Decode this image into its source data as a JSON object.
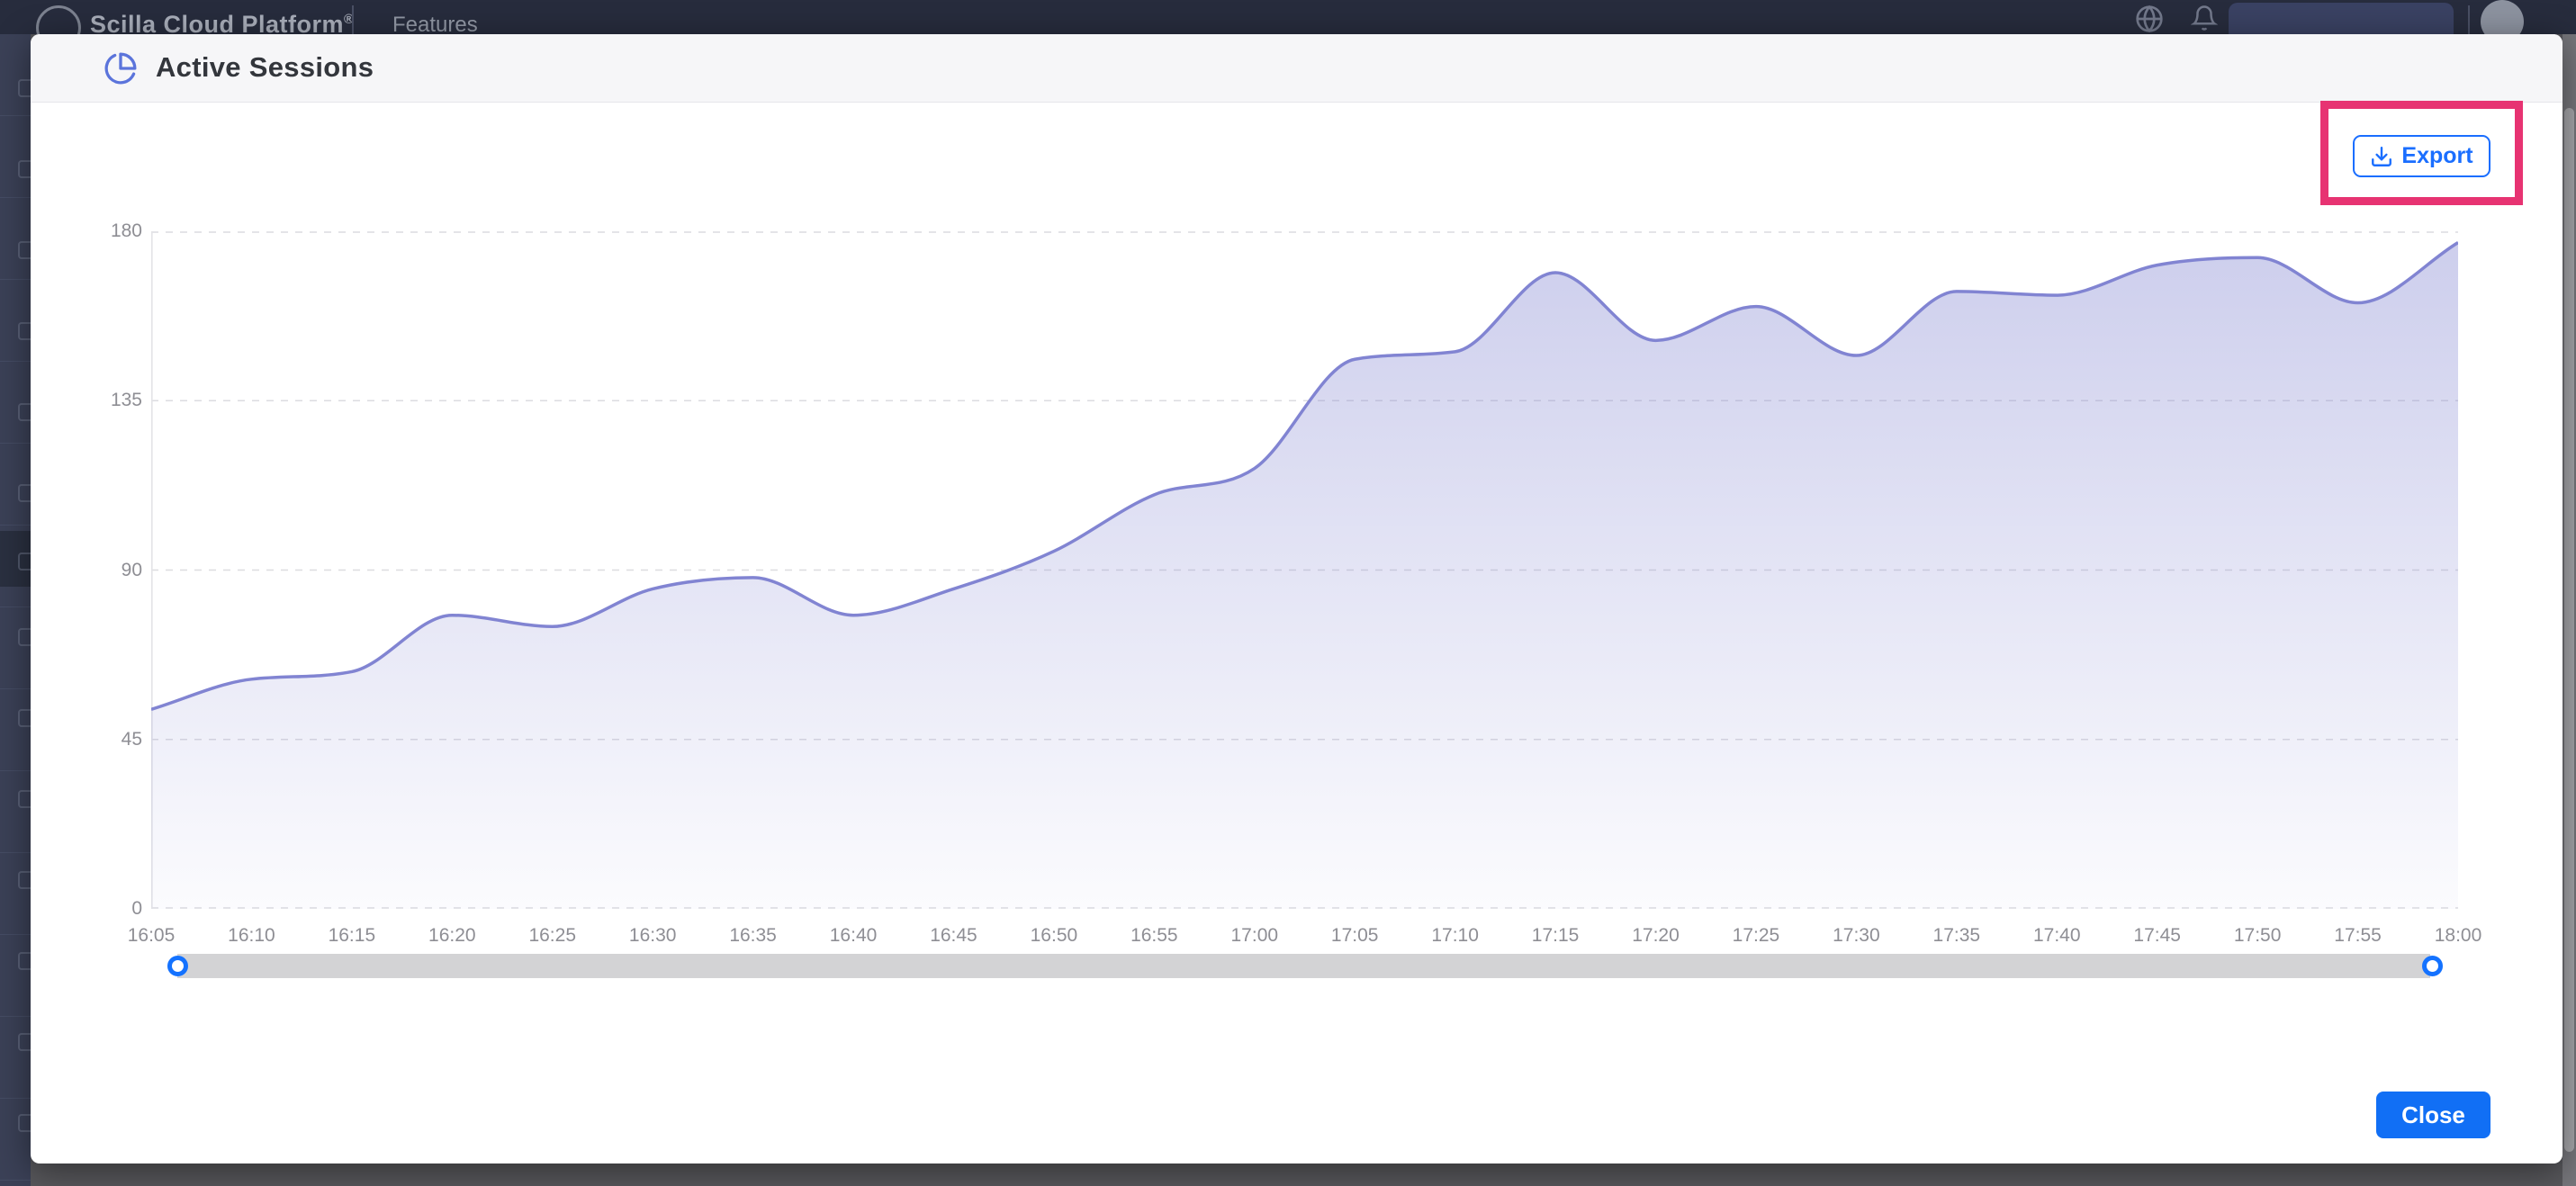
{
  "header": {
    "brand": "Scilla Cloud Platform",
    "registered": "®",
    "nav_item": "Features"
  },
  "modal": {
    "title": "Active Sessions",
    "export_label": "Export",
    "close_label": "Close"
  },
  "icons": {
    "title_icon": "pie-chart",
    "export_icon": "download",
    "topbar_icons": [
      "globe",
      "bell"
    ]
  },
  "chart_data": {
    "type": "area",
    "title": "Active Sessions",
    "x": [
      "16:05",
      "16:10",
      "16:15",
      "16:20",
      "16:25",
      "16:30",
      "16:35",
      "16:40",
      "16:45",
      "16:50",
      "16:55",
      "17:00",
      "17:05",
      "17:10",
      "17:15",
      "17:20",
      "17:25",
      "17:30",
      "17:35",
      "17:40",
      "17:45",
      "17:50",
      "17:55",
      "18:00"
    ],
    "values": [
      53,
      61,
      63,
      78,
      75,
      85,
      88,
      78,
      85,
      95,
      110,
      117,
      146,
      148,
      169,
      151,
      160,
      147,
      164,
      163,
      171,
      173,
      161,
      177
    ],
    "ylim": [
      0,
      180
    ],
    "yticks": [
      0,
      45,
      90,
      135,
      180
    ],
    "grid": "horizontal-dashed",
    "legend": "none",
    "line_color": "#8184d2",
    "fill_color": "#8083d0",
    "fill_style": "vertical gradient fading to white"
  },
  "colors": {
    "topbar_navy": "#272c3d",
    "export_blue": "#1a6eff",
    "close_blue": "#116ff5",
    "slider_handle_blue": "#1472ff",
    "annotation_pink": "#e73372",
    "line_purple": "#8184d2",
    "grid_gray": "#dcdce0",
    "tick_gray": "#8e8e94"
  }
}
